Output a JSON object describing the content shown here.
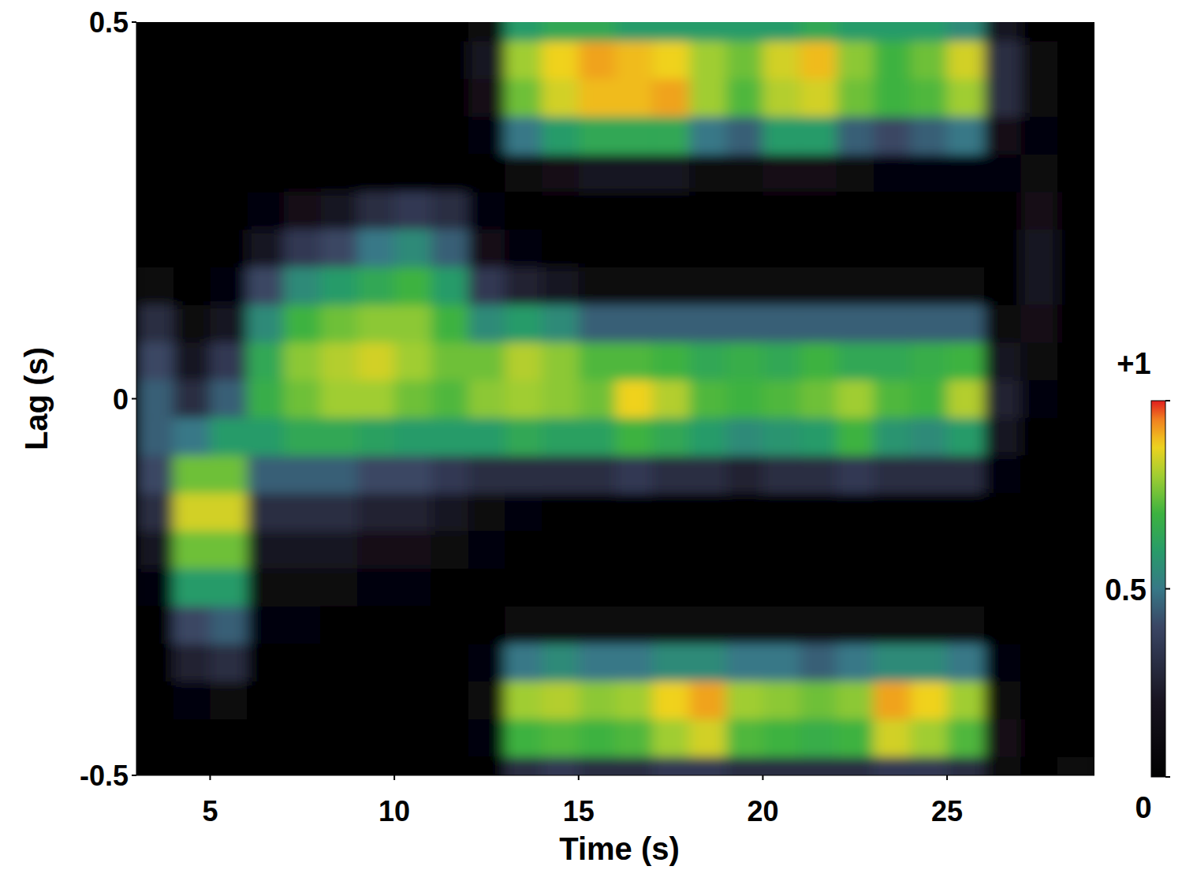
{
  "chart_data": {
    "type": "heatmap",
    "x_label": "Time (s)",
    "y_label": "Lag (s)",
    "xlim": [
      3,
      29
    ],
    "ylim": [
      -0.5,
      0.5
    ],
    "xticks": [
      5,
      10,
      15,
      20,
      25
    ],
    "yticks": [
      -0.5,
      0,
      0.5
    ],
    "x": [
      3.5,
      4.5,
      5.5,
      6.5,
      7.5,
      8.5,
      9.5,
      10.5,
      11.5,
      12.5,
      13.5,
      14.5,
      15.5,
      16.5,
      17.5,
      18.5,
      19.5,
      20.5,
      21.5,
      22.5,
      23.5,
      24.5,
      25.5,
      26.5,
      27.5,
      28.5
    ],
    "y": [
      -0.5,
      -0.45,
      -0.4,
      -0.35,
      -0.3,
      -0.25,
      -0.2,
      -0.15,
      -0.1,
      -0.05,
      0,
      0.05,
      0.1,
      0.15,
      0.2,
      0.25,
      0.3,
      0.35,
      0.4,
      0.45,
      0.5
    ],
    "values": [
      [
        0,
        0,
        0,
        0,
        0,
        0,
        0,
        0,
        0,
        0,
        0.3,
        0.35,
        0.3,
        0.3,
        0.35,
        0.35,
        0.3,
        0.3,
        0.3,
        0.3,
        0.35,
        0.35,
        0.3,
        0.1,
        0,
        0.1
      ],
      [
        0,
        0,
        0,
        0,
        0,
        0,
        0,
        0,
        0,
        0.05,
        0.7,
        0.72,
        0.7,
        0.72,
        0.8,
        0.85,
        0.72,
        0.7,
        0.68,
        0.7,
        0.85,
        0.8,
        0.72,
        0.15,
        0,
        0
      ],
      [
        0,
        0.05,
        0.1,
        0,
        0,
        0,
        0,
        0,
        0,
        0.1,
        0.8,
        0.82,
        0.78,
        0.8,
        0.88,
        0.92,
        0.8,
        0.78,
        0.75,
        0.78,
        0.92,
        0.88,
        0.8,
        0.1,
        0,
        0
      ],
      [
        0,
        0.25,
        0.3,
        0,
        0,
        0,
        0,
        0,
        0,
        0.05,
        0.5,
        0.55,
        0.5,
        0.5,
        0.55,
        0.55,
        0.5,
        0.5,
        0.45,
        0.5,
        0.55,
        0.55,
        0.5,
        0.05,
        0,
        0
      ],
      [
        0,
        0.4,
        0.45,
        0.05,
        0.05,
        0,
        0,
        0,
        0,
        0,
        0.1,
        0.1,
        0.1,
        0.1,
        0.1,
        0.1,
        0.1,
        0.1,
        0.1,
        0.1,
        0.1,
        0.1,
        0.1,
        0,
        0,
        0
      ],
      [
        0.05,
        0.6,
        0.6,
        0.1,
        0.1,
        0.1,
        0.05,
        0.05,
        0,
        0,
        0,
        0,
        0,
        0,
        0,
        0,
        0,
        0,
        0,
        0,
        0,
        0,
        0,
        0,
        0,
        0
      ],
      [
        0.2,
        0.75,
        0.75,
        0.2,
        0.2,
        0.2,
        0.15,
        0.15,
        0.1,
        0.05,
        0,
        0,
        0,
        0,
        0,
        0,
        0,
        0,
        0,
        0,
        0,
        0,
        0,
        0,
        0,
        0
      ],
      [
        0.3,
        0.85,
        0.85,
        0.3,
        0.3,
        0.3,
        0.25,
        0.25,
        0.2,
        0.1,
        0.05,
        0,
        0,
        0,
        0,
        0,
        0,
        0,
        0,
        0,
        0,
        0,
        0,
        0,
        0,
        0
      ],
      [
        0.4,
        0.75,
        0.75,
        0.45,
        0.45,
        0.45,
        0.4,
        0.4,
        0.35,
        0.3,
        0.3,
        0.3,
        0.3,
        0.35,
        0.3,
        0.3,
        0.25,
        0.3,
        0.3,
        0.35,
        0.3,
        0.3,
        0.3,
        0.05,
        0,
        0
      ],
      [
        0.45,
        0.5,
        0.6,
        0.6,
        0.65,
        0.65,
        0.62,
        0.6,
        0.6,
        0.6,
        0.65,
        0.62,
        0.62,
        0.7,
        0.65,
        0.6,
        0.55,
        0.58,
        0.6,
        0.7,
        0.58,
        0.55,
        0.6,
        0.2,
        0,
        0
      ],
      [
        0.45,
        0.3,
        0.45,
        0.68,
        0.75,
        0.8,
        0.8,
        0.75,
        0.72,
        0.78,
        0.8,
        0.78,
        0.75,
        0.88,
        0.82,
        0.72,
        0.7,
        0.72,
        0.75,
        0.8,
        0.72,
        0.7,
        0.82,
        0.25,
        0.05,
        0
      ],
      [
        0.4,
        0.2,
        0.35,
        0.65,
        0.78,
        0.82,
        0.85,
        0.8,
        0.75,
        0.75,
        0.82,
        0.78,
        0.72,
        0.72,
        0.7,
        0.65,
        0.68,
        0.65,
        0.7,
        0.65,
        0.65,
        0.68,
        0.7,
        0.2,
        0.1,
        0
      ],
      [
        0.3,
        0.1,
        0.2,
        0.55,
        0.7,
        0.75,
        0.78,
        0.78,
        0.7,
        0.55,
        0.6,
        0.55,
        0.45,
        0.45,
        0.45,
        0.45,
        0.45,
        0.45,
        0.45,
        0.45,
        0.45,
        0.45,
        0.45,
        0.1,
        0.15,
        0
      ],
      [
        0.1,
        0,
        0.05,
        0.4,
        0.55,
        0.6,
        0.65,
        0.7,
        0.6,
        0.35,
        0.25,
        0.2,
        0.1,
        0.1,
        0.1,
        0.1,
        0.1,
        0.1,
        0.1,
        0.1,
        0.1,
        0.1,
        0.1,
        0,
        0.2,
        0
      ],
      [
        0,
        0,
        0,
        0.2,
        0.35,
        0.4,
        0.5,
        0.55,
        0.45,
        0.15,
        0.05,
        0,
        0,
        0,
        0,
        0,
        0,
        0,
        0,
        0,
        0,
        0,
        0,
        0,
        0.2,
        0
      ],
      [
        0,
        0,
        0,
        0.05,
        0.15,
        0.2,
        0.3,
        0.35,
        0.3,
        0.05,
        0,
        0,
        0,
        0,
        0,
        0,
        0,
        0,
        0,
        0,
        0,
        0,
        0,
        0,
        0.15,
        0
      ],
      [
        0,
        0,
        0,
        0,
        0,
        0,
        0,
        0,
        0,
        0,
        0.1,
        0.15,
        0.2,
        0.2,
        0.2,
        0.1,
        0.1,
        0.15,
        0.15,
        0.1,
        0.05,
        0.05,
        0.05,
        0.05,
        0.1,
        0
      ],
      [
        0,
        0,
        0,
        0,
        0,
        0,
        0,
        0,
        0,
        0.05,
        0.5,
        0.6,
        0.65,
        0.65,
        0.65,
        0.5,
        0.45,
        0.6,
        0.6,
        0.45,
        0.4,
        0.45,
        0.5,
        0.15,
        0.05,
        0
      ],
      [
        0,
        0,
        0,
        0,
        0,
        0,
        0,
        0,
        0,
        0.15,
        0.75,
        0.85,
        0.9,
        0.9,
        0.92,
        0.8,
        0.72,
        0.82,
        0.85,
        0.75,
        0.7,
        0.72,
        0.8,
        0.3,
        0.1,
        0
      ],
      [
        0,
        0,
        0,
        0,
        0,
        0,
        0,
        0,
        0,
        0.2,
        0.8,
        0.88,
        0.92,
        0.9,
        0.88,
        0.8,
        0.75,
        0.85,
        0.9,
        0.78,
        0.7,
        0.75,
        0.85,
        0.3,
        0.1,
        0
      ],
      [
        0,
        0,
        0,
        0,
        0,
        0,
        0,
        0,
        0,
        0.1,
        0.6,
        0.65,
        0.65,
        0.6,
        0.6,
        0.6,
        0.6,
        0.6,
        0.65,
        0.6,
        0.6,
        0.6,
        0.55,
        0.2,
        0,
        0
      ]
    ],
    "colorbar": {
      "range": [
        0,
        1
      ],
      "ticks": [
        0,
        0.5,
        {
          "value": 1,
          "label": "+1"
        }
      ]
    }
  }
}
